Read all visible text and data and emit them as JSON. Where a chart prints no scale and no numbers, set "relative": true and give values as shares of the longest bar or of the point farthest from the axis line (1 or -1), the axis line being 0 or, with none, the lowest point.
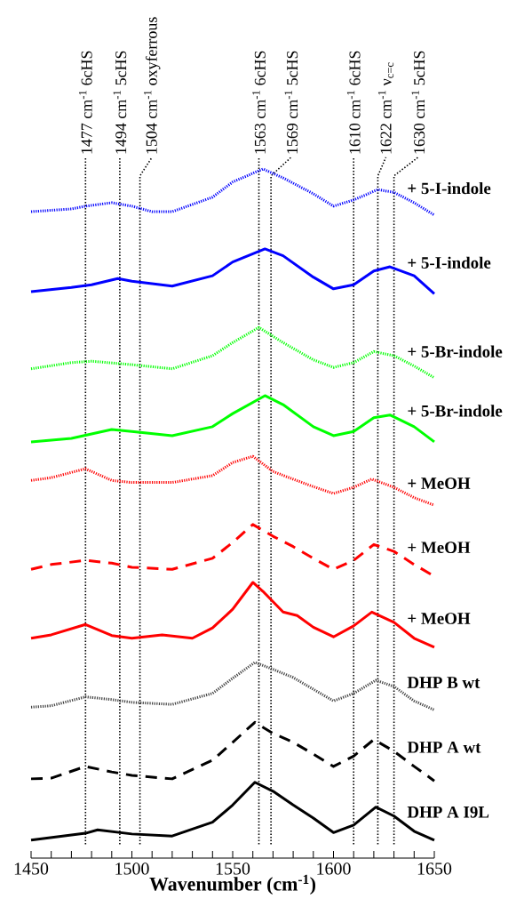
{
  "chart_data": {
    "type": "line",
    "relative": true,
    "xlabel": "Wavenumber (cm$^{-1}$)",
    "xlim": [
      1450,
      1650
    ],
    "xticks": [
      1450,
      1500,
      1550,
      1600,
      1650
    ],
    "tick_labels": "x",
    "series": [
      {
        "name": "+ 5-I-indole",
        "color": "#0000ff",
        "line_style": "dotted",
        "x": [
          1450,
          1470,
          1477,
          1490,
          1500,
          1510,
          1520,
          1540,
          1550,
          1565,
          1575,
          1590,
          1600,
          1610,
          1622,
          1630,
          1640,
          1650
        ],
        "values": [
          0.938,
          0.942,
          0.946,
          0.951,
          0.946,
          0.938,
          0.938,
          0.959,
          0.981,
          1,
          0.987,
          0.964,
          0.946,
          0.955,
          0.97,
          0.966,
          0.951,
          0.933
        ]
      },
      {
        "name": "+ 5-I-indole",
        "color": "#0000ff",
        "line_style": "solid",
        "x": [
          1450,
          1470,
          1480,
          1493,
          1500,
          1520,
          1540,
          1550,
          1566,
          1575,
          1590,
          1600,
          1610,
          1620,
          1628,
          1640,
          1650
        ],
        "values": [
          0.822,
          0.828,
          0.832,
          0.841,
          0.837,
          0.83,
          0.845,
          0.865,
          0.884,
          0.874,
          0.843,
          0.826,
          0.832,
          0.852,
          0.858,
          0.845,
          0.819
        ]
      },
      {
        "name": "+ 5-Br-indole",
        "color": "#00ff00",
        "line_style": "dotted",
        "x": [
          1450,
          1470,
          1480,
          1500,
          1520,
          1540,
          1550,
          1563,
          1575,
          1590,
          1600,
          1610,
          1620,
          1630,
          1640,
          1650
        ],
        "values": [
          0.71,
          0.719,
          0.721,
          0.716,
          0.71,
          0.729,
          0.748,
          0.77,
          0.748,
          0.723,
          0.712,
          0.719,
          0.735,
          0.729,
          0.714,
          0.697
        ]
      },
      {
        "name": "+ 5-Br-indole",
        "color": "#00ff00",
        "line_style": "solid",
        "x": [
          1450,
          1470,
          1490,
          1500,
          1520,
          1540,
          1550,
          1566,
          1575,
          1590,
          1600,
          1610,
          1620,
          1628,
          1640,
          1650
        ],
        "values": [
          0.604,
          0.609,
          0.622,
          0.619,
          0.613,
          0.626,
          0.645,
          0.671,
          0.658,
          0.626,
          0.613,
          0.619,
          0.639,
          0.643,
          0.626,
          0.604
        ]
      },
      {
        "name": "+ MeOH",
        "color": "#ff0000",
        "line_style": "dotted",
        "x": [
          1450,
          1460,
          1477,
          1490,
          1500,
          1520,
          1540,
          1550,
          1560,
          1570,
          1578,
          1590,
          1600,
          1610,
          1619,
          1630,
          1640,
          1650
        ],
        "values": [
          0.548,
          0.552,
          0.565,
          0.548,
          0.545,
          0.545,
          0.555,
          0.574,
          0.583,
          0.561,
          0.552,
          0.539,
          0.529,
          0.538,
          0.55,
          0.538,
          0.523,
          0.512
        ]
      },
      {
        "name": "+ MeOH",
        "color": "#ff0000",
        "line_style": "dashed",
        "x": [
          1450,
          1460,
          1477,
          1490,
          1500,
          1520,
          1540,
          1550,
          1560,
          1570,
          1580,
          1590,
          1600,
          1610,
          1620,
          1630,
          1640,
          1650
        ],
        "values": [
          0.419,
          0.426,
          0.432,
          0.428,
          0.422,
          0.419,
          0.435,
          0.458,
          0.484,
          0.467,
          0.452,
          0.435,
          0.419,
          0.432,
          0.455,
          0.445,
          0.426,
          0.409
        ]
      },
      {
        "name": "+ MeOH",
        "color": "#ff0000",
        "line_style": "solid",
        "x": [
          1450,
          1460,
          1477,
          1490,
          1500,
          1515,
          1530,
          1540,
          1550,
          1560,
          1565,
          1575,
          1582,
          1590,
          1600,
          1610,
          1619,
          1630,
          1640,
          1650
        ],
        "values": [
          0.319,
          0.324,
          0.339,
          0.323,
          0.319,
          0.324,
          0.319,
          0.334,
          0.361,
          0.4,
          0.387,
          0.357,
          0.352,
          0.335,
          0.321,
          0.337,
          0.357,
          0.342,
          0.319,
          0.306
        ]
      },
      {
        "name": "DHP B wt",
        "color": "#404040",
        "line_style": "dotted",
        "x": [
          1450,
          1460,
          1477,
          1490,
          1500,
          1520,
          1540,
          1550,
          1561,
          1570,
          1580,
          1590,
          1600,
          1610,
          1621,
          1630,
          1640,
          1650
        ],
        "values": [
          0.219,
          0.221,
          0.234,
          0.23,
          0.226,
          0.223,
          0.239,
          0.261,
          0.284,
          0.274,
          0.262,
          0.245,
          0.228,
          0.239,
          0.258,
          0.249,
          0.228,
          0.215
        ]
      },
      {
        "name": "DHP A wt",
        "color": "#000000",
        "line_style": "dashed",
        "x": [
          1450,
          1460,
          1477,
          1490,
          1500,
          1520,
          1540,
          1550,
          1561,
          1570,
          1580,
          1590,
          1600,
          1610,
          1620,
          1630,
          1640,
          1650
        ],
        "values": [
          0.115,
          0.116,
          0.133,
          0.125,
          0.12,
          0.115,
          0.142,
          0.168,
          0.197,
          0.181,
          0.168,
          0.151,
          0.133,
          0.148,
          0.172,
          0.155,
          0.133,
          0.112
        ]
      },
      {
        "name": "DHP A I9L",
        "color": "#000000",
        "line_style": "solid",
        "x": [
          1450,
          1477,
          1483,
          1500,
          1520,
          1540,
          1550,
          1561,
          1570,
          1580,
          1590,
          1600,
          1610,
          1621,
          1630,
          1640,
          1650
        ],
        "values": [
          0.026,
          0.036,
          0.041,
          0.035,
          0.032,
          0.052,
          0.077,
          0.11,
          0.097,
          0.077,
          0.058,
          0.037,
          0.048,
          0.074,
          0.061,
          0.039,
          0.026
        ]
      }
    ],
    "ref_lines": [
      {
        "axis": "x",
        "value": 1477,
        "label": "1477 cm$^{-1}$ 6cHS",
        "color": "#000000",
        "line_style": "dotted"
      },
      {
        "axis": "x",
        "value": 1494,
        "label": "1494 cm$^{-1}$ 5cHS",
        "color": "#000000",
        "line_style": "dotted"
      },
      {
        "axis": "x",
        "value": 1504,
        "label": "1504 cm$^{-1}$ oxyferrous",
        "color": "#000000",
        "line_style": "dotted"
      },
      {
        "axis": "x",
        "value": 1563,
        "label": "1563 cm$^{-1}$ 6cHS",
        "color": "#000000",
        "line_style": "dotted"
      },
      {
        "axis": "x",
        "value": 1569,
        "label": "1569 cm$^{-1}$ 5cHS",
        "color": "#000000",
        "line_style": "dotted"
      },
      {
        "axis": "x",
        "value": 1610,
        "label": "1610 cm$^{-1}$ 6cHS",
        "color": "#000000",
        "line_style": "dotted"
      },
      {
        "axis": "x",
        "value": 1622,
        "label": "1622 cm$^{-1}$ ν$_{c=c}$",
        "color": "#000000",
        "line_style": "dotted"
      },
      {
        "axis": "x",
        "value": 1630,
        "label": "1630 cm$^{-1}$ 5cHS",
        "color": "#000000",
        "line_style": "dotted"
      }
    ]
  }
}
